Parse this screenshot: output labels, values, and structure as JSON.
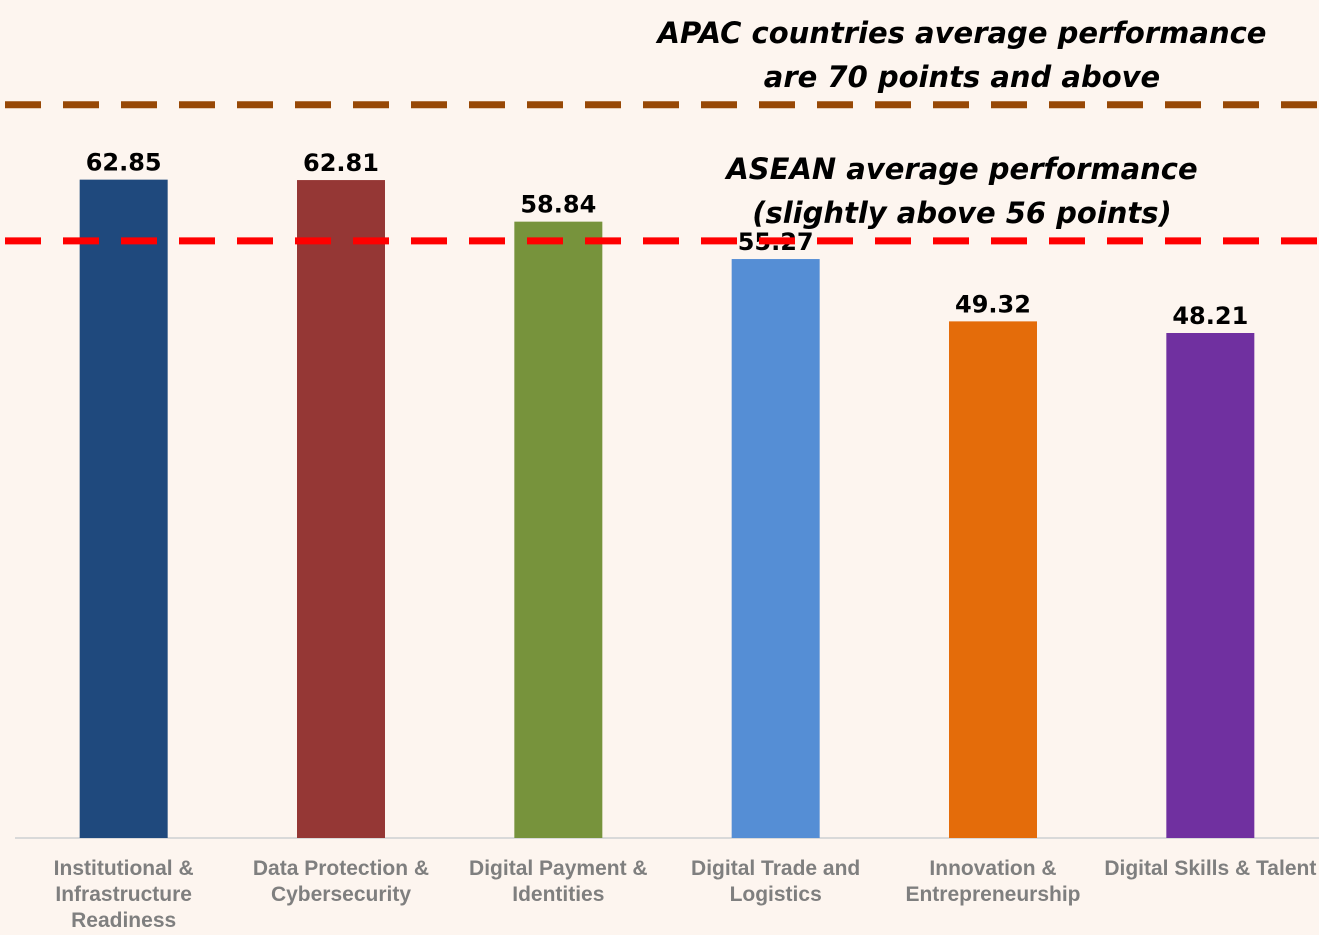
{
  "chart_data": {
    "type": "bar",
    "categories": [
      "Institutional & Infrastructure Readiness",
      "Data Protection & Cybersecurity",
      "Digital Payment & Identities",
      "Digital Trade and Logistics",
      "Innovation & Entrepreneurship",
      "Digital Skills & Talent"
    ],
    "values": [
      62.85,
      62.81,
      58.84,
      55.27,
      49.32,
      48.21
    ],
    "colors": [
      "#1f497d",
      "#953735",
      "#77933c",
      "#558ed5",
      "#e46c0a",
      "#7030a0"
    ],
    "ylim": [
      0,
      80
    ],
    "reference_lines": [
      {
        "value": 70,
        "color": "#974806",
        "label": [
          "APAC countries average performance",
          "are 70 points and above"
        ]
      },
      {
        "value": 57,
        "color": "#ff0000",
        "label": [
          "ASEAN average performance",
          "(slightly above 56 points)"
        ]
      }
    ]
  }
}
